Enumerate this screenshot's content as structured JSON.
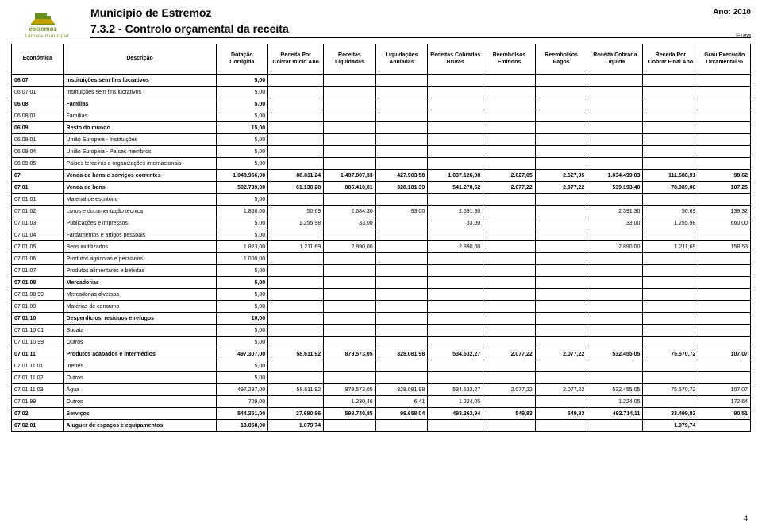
{
  "header": {
    "municipality": "Municipio de Estremoz",
    "report_title": "7.3.2 - Controlo orçamental da receita",
    "year_label": "Ano: 2010",
    "currency": "Euro",
    "logo_brand": "estremoz",
    "logo_subtitle": "câmara municipal"
  },
  "columns": [
    "Económica",
    "Descrição",
    "Dotação Corrigida",
    "Receita Por Cobrar Inicio Ano",
    "Receitas Liquidadas",
    "Liquidações Anuladas",
    "Receitas Cobradas Brutas",
    "Reembolsos Emitidos",
    "Reembolsos Pagos",
    "Receita Cobrada Líquida",
    "Receita Por Cobrar Final Ano",
    "Grau Execução Orçamental %"
  ],
  "rows": [
    {
      "bold": true,
      "code": "06 07",
      "desc": "Instituições sem fins lucrativos",
      "v": [
        "5,00",
        "",
        "",
        "",
        "",
        "",
        "",
        "",
        "",
        ""
      ]
    },
    {
      "bold": false,
      "code": "06 07 01",
      "desc": "Instituições sem fins lucrativos",
      "v": [
        "5,00",
        "",
        "",
        "",
        "",
        "",
        "",
        "",
        "",
        ""
      ]
    },
    {
      "bold": true,
      "code": "06 08",
      "desc": "Famílias",
      "v": [
        "5,00",
        "",
        "",
        "",
        "",
        "",
        "",
        "",
        "",
        ""
      ]
    },
    {
      "bold": false,
      "code": "06 08 01",
      "desc": "Famílias",
      "v": [
        "5,00",
        "",
        "",
        "",
        "",
        "",
        "",
        "",
        "",
        ""
      ]
    },
    {
      "bold": true,
      "code": "06 09",
      "desc": "Resto do mundo",
      "v": [
        "15,00",
        "",
        "",
        "",
        "",
        "",
        "",
        "",
        "",
        ""
      ]
    },
    {
      "bold": false,
      "code": "06 09 01",
      "desc": "União Europeia - Instituições",
      "v": [
        "5,00",
        "",
        "",
        "",
        "",
        "",
        "",
        "",
        "",
        ""
      ]
    },
    {
      "bold": false,
      "code": "06 09 04",
      "desc": "União Europeia - Países membros",
      "v": [
        "5,00",
        "",
        "",
        "",
        "",
        "",
        "",
        "",
        "",
        ""
      ]
    },
    {
      "bold": false,
      "code": "06 09 05",
      "desc": "Países terceiros e organizações internacionais",
      "v": [
        "5,00",
        "",
        "",
        "",
        "",
        "",
        "",
        "",
        "",
        ""
      ]
    },
    {
      "bold": true,
      "code": "07",
      "desc": "Venda de bens e serviços correntes",
      "v": [
        "1.048.956,00",
        "88.811,24",
        "1.487.807,33",
        "427.903,58",
        "1.037.126,08",
        "2.627,05",
        "2.627,05",
        "1.034.499,03",
        "111.588,91",
        "98,62"
      ]
    },
    {
      "bold": true,
      "code": "07 01",
      "desc": "Venda de bens",
      "v": [
        "502.739,00",
        "61.130,28",
        "886.410,81",
        "328.181,39",
        "541.270,62",
        "2.077,22",
        "2.077,22",
        "539.193,40",
        "78.089,08",
        "107,25"
      ]
    },
    {
      "bold": false,
      "code": "07 01 01",
      "desc": "Material de escritório",
      "v": [
        "5,00",
        "",
        "",
        "",
        "",
        "",
        "",
        "",
        "",
        ""
      ]
    },
    {
      "bold": false,
      "code": "07 01 02",
      "desc": "Livros e documentação técnica",
      "v": [
        "1.860,00",
        "50,69",
        "2.684,30",
        "93,00",
        "2.591,30",
        "",
        "",
        "2.591,30",
        "50,69",
        "139,32"
      ]
    },
    {
      "bold": false,
      "code": "07 01 03",
      "desc": "Publicações e impressos",
      "v": [
        "5,00",
        "1.255,98",
        "33,00",
        "",
        "33,00",
        "",
        "",
        "33,00",
        "1.255,98",
        "660,00"
      ]
    },
    {
      "bold": false,
      "code": "07 01 04",
      "desc": "Fardamentos e artigos pessoais",
      "v": [
        "5,00",
        "",
        "",
        "",
        "",
        "",
        "",
        "",
        "",
        ""
      ]
    },
    {
      "bold": false,
      "code": "07 01 05",
      "desc": "Bens inutilizados",
      "v": [
        "1.823,00",
        "1.211,69",
        "2.890,00",
        "",
        "2.890,00",
        "",
        "",
        "2.890,00",
        "1.211,69",
        "158,53"
      ]
    },
    {
      "bold": false,
      "code": "07 01 06",
      "desc": "Produtos agrícolas e pecuários",
      "v": [
        "1.000,00",
        "",
        "",
        "",
        "",
        "",
        "",
        "",
        "",
        ""
      ]
    },
    {
      "bold": false,
      "code": "07 01 07",
      "desc": "Produtos alimentares e bebidas",
      "v": [
        "5,00",
        "",
        "",
        "",
        "",
        "",
        "",
        "",
        "",
        ""
      ]
    },
    {
      "bold": true,
      "code": "07 01 08",
      "desc": "Mercadorias",
      "v": [
        "5,00",
        "",
        "",
        "",
        "",
        "",
        "",
        "",
        "",
        ""
      ]
    },
    {
      "bold": false,
      "code": "07 01 08 99",
      "desc": "Mercadorias diversas",
      "v": [
        "5,00",
        "",
        "",
        "",
        "",
        "",
        "",
        "",
        "",
        ""
      ]
    },
    {
      "bold": false,
      "code": "07 01 09",
      "desc": "Matérias de consumo",
      "v": [
        "5,00",
        "",
        "",
        "",
        "",
        "",
        "",
        "",
        "",
        ""
      ]
    },
    {
      "bold": true,
      "code": "07 01 10",
      "desc": "Desperdícios, resíduos e refugos",
      "v": [
        "10,00",
        "",
        "",
        "",
        "",
        "",
        "",
        "",
        "",
        ""
      ]
    },
    {
      "bold": false,
      "code": "07 01 10 01",
      "desc": "Sucata",
      "v": [
        "5,00",
        "",
        "",
        "",
        "",
        "",
        "",
        "",
        "",
        ""
      ]
    },
    {
      "bold": false,
      "code": "07 01 10 99",
      "desc": "Outros",
      "v": [
        "5,00",
        "",
        "",
        "",
        "",
        "",
        "",
        "",
        "",
        ""
      ]
    },
    {
      "bold": true,
      "code": "07 01 11",
      "desc": "Produtos acabados e intermédios",
      "v": [
        "497.307,00",
        "58.611,92",
        "879.573,05",
        "328.081,98",
        "534.532,27",
        "2.077,22",
        "2.077,22",
        "532.455,05",
        "75.570,72",
        "107,07"
      ]
    },
    {
      "bold": false,
      "code": "07 01 11 01",
      "desc": "Inertes",
      "v": [
        "5,00",
        "",
        "",
        "",
        "",
        "",
        "",
        "",
        "",
        ""
      ]
    },
    {
      "bold": false,
      "code": "07 01 11 02",
      "desc": "Outros",
      "v": [
        "5,00",
        "",
        "",
        "",
        "",
        "",
        "",
        "",
        "",
        ""
      ]
    },
    {
      "bold": false,
      "code": "07 01 11 03",
      "desc": "Água",
      "v": [
        "497.297,00",
        "58.611,92",
        "879.573,05",
        "328.081,98",
        "534.532,27",
        "2.077,22",
        "2.077,22",
        "532.455,05",
        "75.570,72",
        "107,07"
      ]
    },
    {
      "bold": false,
      "code": "07 01 99",
      "desc": "Outros",
      "v": [
        "709,00",
        "",
        "1.230,46",
        "6,41",
        "1.224,05",
        "",
        "",
        "1.224,05",
        "",
        "172,64"
      ]
    },
    {
      "bold": true,
      "code": "07 02",
      "desc": "Serviços",
      "v": [
        "544.351,00",
        "27.680,96",
        "598.740,85",
        "99.658,04",
        "493.263,94",
        "549,83",
        "549,83",
        "492.714,11",
        "33.499,83",
        "90,51"
      ]
    },
    {
      "bold": true,
      "code": "07 02 01",
      "desc": "Aluguer de espaços e equipamentos",
      "v": [
        "13.068,00",
        "1.079,74",
        "",
        "",
        "",
        "",
        "",
        "",
        "1.079,74",
        ""
      ]
    }
  ],
  "page_number": "4",
  "style": {
    "font_family": "Arial",
    "header_fontsize_pt": 14,
    "cell_fontsize_pt": 7,
    "border_color": "#000000",
    "background": "#ffffff",
    "logo_green": "#6b8e23",
    "logo_accent": "#c0a000"
  }
}
